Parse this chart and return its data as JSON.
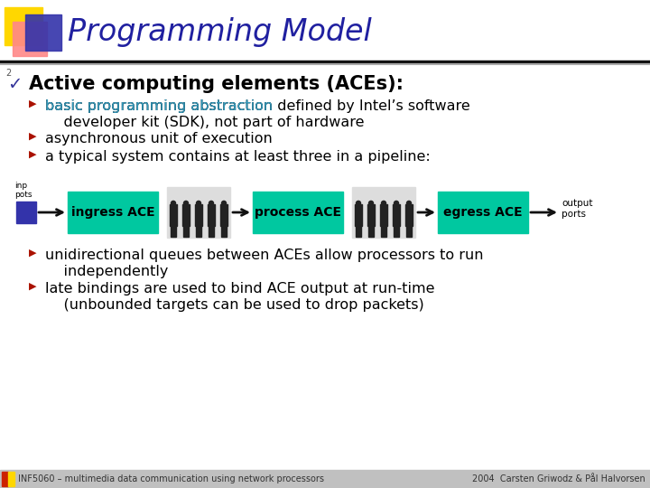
{
  "title": "Programming Model",
  "title_color": "#2020A0",
  "background_color": "#FFFFFF",
  "header_line_color": "#999999",
  "header_dark_line_color": "#222266",
  "main_bullet": "Active computing elements (ACEs):",
  "main_bullet_color": "#000000",
  "sub_bullet_color_cyan": "#3399BB",
  "sub_bullet_marker_color": "#AA1100",
  "bullet1_cyan": "basic programming abstraction",
  "bullet1_rest": " defined by Intel’s software",
  "bullet1_line2": "    developer kit (SDK), not part of hardware",
  "bullet2": "asynchronous unit of execution",
  "bullet3": "a typical system contains at least three in a pipeline:",
  "bullet4_line1": "unidirectional queues between ACEs allow processors to run",
  "bullet4_line2": "    independently",
  "bullet5_line1": "late bindings are used to bind ACE output at run-time",
  "bullet5_line2": "    (unbounded targets can be used to drop packets)",
  "ace_boxes": [
    "ingress ACE",
    "process ACE",
    "egress ACE"
  ],
  "ace_box_color": "#00C8A0",
  "ace_box_text_color": "#000000",
  "arrow_color": "#111111",
  "input_ports_text": "inp\npots",
  "output_ports_text": "output\nports",
  "footer_left": "INF5060 – multimedia data communication using network processors",
  "footer_right": "2004  Carsten Griwodz & Pål Halvorsen",
  "footer_bg": "#C0C0C0",
  "footer_text_color": "#333333",
  "slide_number": "2",
  "logo_yellow": "#FFD700",
  "logo_pink": "#FF8888",
  "logo_blue": "#3333AA"
}
